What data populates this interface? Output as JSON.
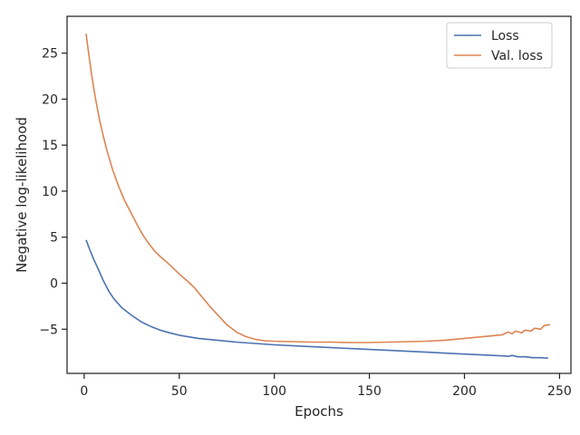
{
  "chart_data": {
    "type": "line",
    "xlabel": "Epochs",
    "ylabel": "Negative log-likelihood",
    "xlim": [
      -9,
      256
    ],
    "ylim": [
      -9.8,
      29.0
    ],
    "xticks": [
      0,
      50,
      100,
      150,
      200,
      250
    ],
    "yticks": [
      -5,
      0,
      5,
      10,
      15,
      20,
      25
    ],
    "xtick_labels": [
      "0",
      "50",
      "100",
      "150",
      "200",
      "250"
    ],
    "ytick_labels": [
      "−5",
      "0",
      "5",
      "10",
      "15",
      "20",
      "25"
    ],
    "grid": false,
    "legend_position": "top-right",
    "series": [
      {
        "name": "Loss",
        "color": "#4c72b0",
        "x": [
          1,
          3,
          5,
          7,
          10,
          13,
          16,
          20,
          25,
          30,
          35,
          40,
          45,
          50,
          60,
          70,
          80,
          90,
          100,
          120,
          140,
          160,
          180,
          200,
          210,
          220,
          223,
          225,
          228,
          232,
          236,
          240,
          244
        ],
        "y": [
          4.7,
          3.6,
          2.6,
          1.7,
          0.3,
          -0.9,
          -1.8,
          -2.7,
          -3.5,
          -4.2,
          -4.7,
          -5.1,
          -5.4,
          -5.65,
          -6.0,
          -6.2,
          -6.4,
          -6.55,
          -6.7,
          -6.9,
          -7.1,
          -7.3,
          -7.5,
          -7.7,
          -7.8,
          -7.9,
          -7.95,
          -7.85,
          -8.0,
          -8.0,
          -8.1,
          -8.1,
          -8.15
        ]
      },
      {
        "name": "Val. loss",
        "color": "#dd8452",
        "x": [
          1,
          2,
          4,
          6,
          8,
          10,
          12,
          15,
          18,
          21,
          25,
          28,
          31,
          34,
          37,
          40,
          45,
          50,
          55,
          58,
          62,
          66,
          70,
          75,
          80,
          85,
          90,
          95,
          100,
          110,
          120,
          130,
          140,
          150,
          160,
          170,
          180,
          190,
          200,
          210,
          215,
          220,
          223,
          225,
          227,
          230,
          232,
          235,
          237,
          240,
          242,
          245
        ],
        "y": [
          27.1,
          25.5,
          22.5,
          20.0,
          17.8,
          16.0,
          14.4,
          12.3,
          10.6,
          9.1,
          7.5,
          6.3,
          5.2,
          4.3,
          3.5,
          2.9,
          2.0,
          1.0,
          0.1,
          -0.5,
          -1.5,
          -2.5,
          -3.4,
          -4.5,
          -5.3,
          -5.8,
          -6.1,
          -6.25,
          -6.3,
          -6.35,
          -6.4,
          -6.4,
          -6.45,
          -6.45,
          -6.4,
          -6.35,
          -6.3,
          -6.2,
          -6.0,
          -5.8,
          -5.7,
          -5.6,
          -5.3,
          -5.5,
          -5.2,
          -5.4,
          -5.1,
          -5.2,
          -4.9,
          -5.0,
          -4.6,
          -4.5
        ]
      }
    ]
  }
}
